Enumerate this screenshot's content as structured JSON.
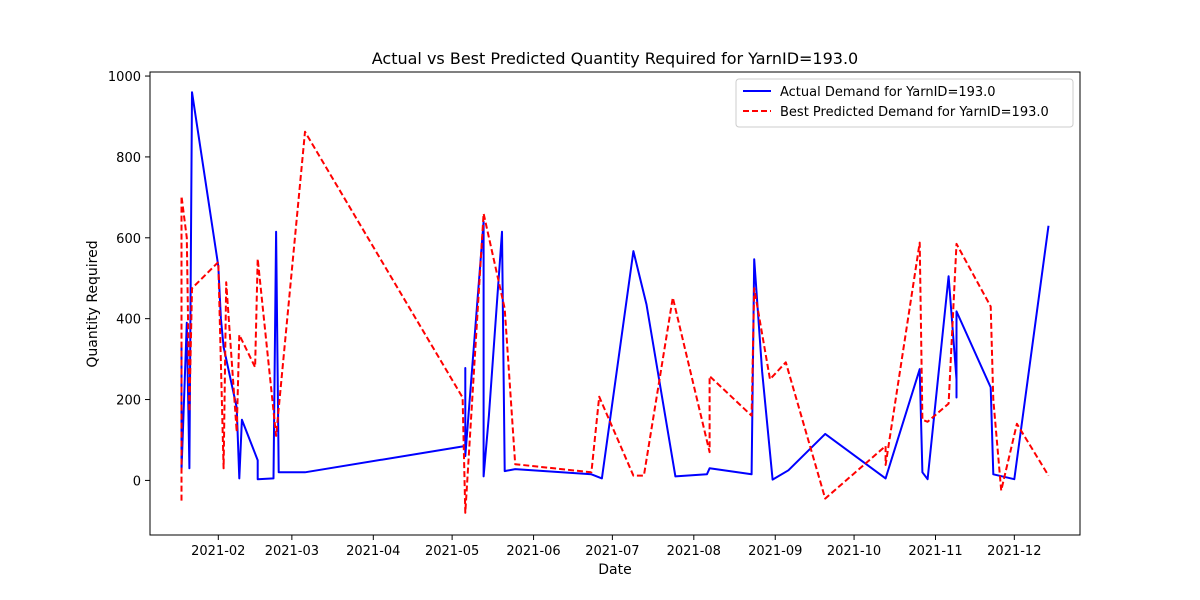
{
  "chart_data": {
    "type": "line",
    "title": "Actual vs Best Predicted Quantity Required for YarnID=193.0",
    "xlabel": "Date",
    "ylabel": "Quantity Required",
    "xlim": [
      "2021-01-06",
      "2021-12-26"
    ],
    "ylim": [
      -135,
      1010
    ],
    "x_ticks": [
      "2021-02-01",
      "2021-03-01",
      "2021-04-01",
      "2021-05-01",
      "2021-06-01",
      "2021-07-01",
      "2021-08-01",
      "2021-09-01",
      "2021-10-01",
      "2021-11-01",
      "2021-12-01"
    ],
    "x_tick_labels": [
      "2021-02",
      "2021-03",
      "2021-04",
      "2021-05",
      "2021-06",
      "2021-07",
      "2021-08",
      "2021-09",
      "2021-10",
      "2021-11",
      "2021-12"
    ],
    "y_ticks": [
      0,
      200,
      400,
      600,
      800,
      1000
    ],
    "y_tick_labels": [
      "0",
      "200",
      "400",
      "600",
      "800",
      "1000"
    ],
    "grid": false,
    "legend_position": "top-right",
    "series": [
      {
        "name": "Actual Demand for YarnID=193.0",
        "color": "#0000ff",
        "style": "solid",
        "points": [
          [
            "2021-01-18",
            330
          ],
          [
            "2021-01-18",
            25
          ],
          [
            "2021-01-20",
            390
          ],
          [
            "2021-01-21",
            30
          ],
          [
            "2021-01-22",
            960
          ],
          [
            "2021-02-01",
            530
          ],
          [
            "2021-02-02",
            400
          ],
          [
            "2021-02-03",
            330
          ],
          [
            "2021-02-08",
            180
          ],
          [
            "2021-02-09",
            5
          ],
          [
            "2021-02-10",
            150
          ],
          [
            "2021-02-16",
            50
          ],
          [
            "2021-02-16",
            3
          ],
          [
            "2021-02-22",
            5
          ],
          [
            "2021-02-23",
            615
          ],
          [
            "2021-02-24",
            20
          ],
          [
            "2021-03-06",
            20
          ],
          [
            "2021-05-06",
            85
          ],
          [
            "2021-05-06",
            278
          ],
          [
            "2021-05-06",
            60
          ],
          [
            "2021-05-13",
            640
          ],
          [
            "2021-05-13",
            10
          ],
          [
            "2021-05-15",
            160
          ],
          [
            "2021-05-20",
            615
          ],
          [
            "2021-05-21",
            23
          ],
          [
            "2021-05-25",
            28
          ],
          [
            "2021-06-23",
            15
          ],
          [
            "2021-06-27",
            5
          ],
          [
            "2021-07-09",
            567
          ],
          [
            "2021-07-14",
            435
          ],
          [
            "2021-07-25",
            10
          ],
          [
            "2021-08-06",
            15
          ],
          [
            "2021-08-07",
            30
          ],
          [
            "2021-08-23",
            15
          ],
          [
            "2021-08-24",
            547
          ],
          [
            "2021-08-27",
            270
          ],
          [
            "2021-08-31",
            2
          ],
          [
            "2021-09-06",
            25
          ],
          [
            "2021-09-20",
            115
          ],
          [
            "2021-10-13",
            5
          ],
          [
            "2021-10-26",
            275
          ],
          [
            "2021-10-27",
            20
          ],
          [
            "2021-10-29",
            3
          ],
          [
            "2021-11-06",
            505
          ],
          [
            "2021-11-09",
            250
          ],
          [
            "2021-11-09",
            205
          ],
          [
            "2021-11-09",
            418
          ],
          [
            "2021-11-22",
            230
          ],
          [
            "2021-11-23",
            15
          ],
          [
            "2021-12-01",
            3
          ],
          [
            "2021-12-14",
            630
          ]
        ]
      },
      {
        "name": "Best Predicted Demand for YarnID=193.0",
        "color": "#ff0000",
        "style": "dashed",
        "points": [
          [
            "2021-01-18",
            -50
          ],
          [
            "2021-01-18",
            703
          ],
          [
            "2021-01-20",
            600
          ],
          [
            "2021-01-21",
            170
          ],
          [
            "2021-01-22",
            475
          ],
          [
            "2021-02-01",
            540
          ],
          [
            "2021-02-03",
            30
          ],
          [
            "2021-02-04",
            490
          ],
          [
            "2021-02-08",
            120
          ],
          [
            "2021-02-09",
            360
          ],
          [
            "2021-02-15",
            280
          ],
          [
            "2021-02-16",
            548
          ],
          [
            "2021-02-23",
            110
          ],
          [
            "2021-03-06",
            862
          ],
          [
            "2021-05-05",
            205
          ],
          [
            "2021-05-06",
            -80
          ],
          [
            "2021-05-13",
            660
          ],
          [
            "2021-05-21",
            425
          ],
          [
            "2021-05-25",
            40
          ],
          [
            "2021-06-23",
            20
          ],
          [
            "2021-06-26",
            207
          ],
          [
            "2021-07-09",
            12
          ],
          [
            "2021-07-13",
            12
          ],
          [
            "2021-07-24",
            452
          ],
          [
            "2021-08-07",
            70
          ],
          [
            "2021-08-07",
            258
          ],
          [
            "2021-08-23",
            160
          ],
          [
            "2021-08-24",
            475
          ],
          [
            "2021-08-30",
            250
          ],
          [
            "2021-09-05",
            292
          ],
          [
            "2021-09-20",
            -45
          ],
          [
            "2021-10-13",
            85
          ],
          [
            "2021-10-13",
            38
          ],
          [
            "2021-10-26",
            588
          ],
          [
            "2021-10-27",
            150
          ],
          [
            "2021-10-29",
            145
          ],
          [
            "2021-11-06",
            190
          ],
          [
            "2021-11-09",
            585
          ],
          [
            "2021-11-22",
            430
          ],
          [
            "2021-11-23",
            200
          ],
          [
            "2021-11-26",
            -25
          ],
          [
            "2021-12-02",
            140
          ],
          [
            "2021-12-14",
            12
          ]
        ]
      }
    ]
  }
}
